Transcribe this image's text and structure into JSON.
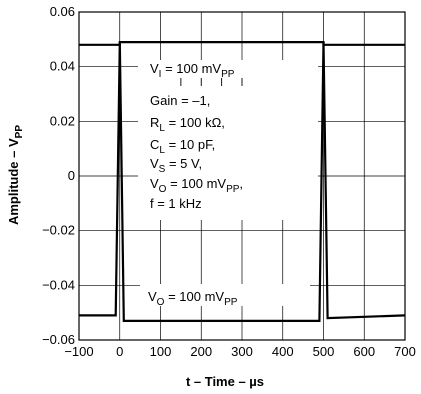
{
  "chart_data": {
    "type": "line",
    "xlabel": "t – Time – µs",
    "ylabel_main": "Amplitude – V",
    "ylabel_sub": "PP",
    "xlim": [
      -100,
      700
    ],
    "ylim": [
      -0.06,
      0.06
    ],
    "x_ticks": [
      -100,
      0,
      100,
      200,
      300,
      400,
      500,
      600,
      700
    ],
    "x_tick_labels": [
      "−100",
      "0",
      "100",
      "200",
      "300",
      "400",
      "500",
      "600",
      "700"
    ],
    "y_ticks": [
      -0.06,
      -0.04,
      -0.02,
      0,
      0.02,
      0.04,
      0.06
    ],
    "y_tick_labels": [
      "−0.06",
      "−0.04",
      "−0.02",
      "0",
      "0.02",
      "0.04",
      "0.06"
    ],
    "grid": true,
    "series": [
      {
        "name": "VI",
        "x": [
          -100,
          0,
          0,
          500,
          500,
          700
        ],
        "y": [
          0.048,
          0.048,
          0.049,
          0.049,
          0.048,
          0.048
        ]
      },
      {
        "name": "VO",
        "x": [
          -100,
          -10,
          0,
          10,
          490,
          500,
          510,
          700
        ],
        "y": [
          -0.051,
          -0.051,
          0.049,
          -0.053,
          -0.053,
          0.049,
          -0.052,
          -0.051
        ]
      }
    ],
    "annotations": {
      "vi": {
        "main": "V",
        "sub": "I",
        "tail": " = 100 mV",
        "tail_sub": "PP"
      },
      "gain": "Gain = –1,",
      "rl": {
        "main": "R",
        "sub": "L",
        "tail": " = 100 kΩ,"
      },
      "cl": {
        "main": "C",
        "sub": "L",
        "tail": " = 10 pF,"
      },
      "vs": {
        "main": "V",
        "sub": "S",
        "tail": " = 5 V,"
      },
      "vo": {
        "main": "V",
        "sub": "O",
        "tail": " = 100 mV",
        "tail_sub": "PP",
        "tail2": ","
      },
      "f": "f = 1 kHz",
      "vo_bottom": {
        "main": "V",
        "sub": "O",
        "tail": " = 100 mV",
        "tail_sub": "PP"
      }
    }
  }
}
